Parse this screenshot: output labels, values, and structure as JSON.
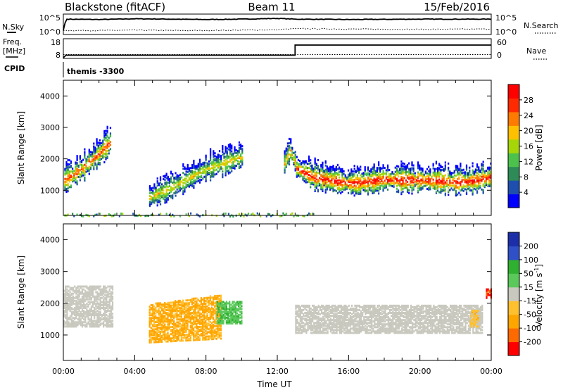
{
  "header": {
    "station": "Blackstone (fitACF)",
    "beam": "Beam 11",
    "date": "15/Feb/2016"
  },
  "noise_panel": {
    "left_label": "N.Sky",
    "right_label": "N.Search",
    "left_ticks": [
      "10^5",
      "10^0"
    ],
    "right_ticks": [
      "10^5",
      "10^0"
    ]
  },
  "freq_panel": {
    "left_label_1": "Freq.",
    "left_label_2": "[MHz]",
    "right_label": "Nave",
    "left_ticks": [
      "18",
      "8"
    ],
    "right_ticks": [
      "60",
      "0"
    ]
  },
  "cpid": {
    "label": "CPID",
    "value": "themis -3300"
  },
  "power_panel": {
    "ylabel": "Slant Range [km]",
    "yticks": [
      "4000",
      "3000",
      "2000",
      "1000"
    ],
    "colorbar_label": "Power [dB]",
    "colorbar_ticks": [
      "28",
      "24",
      "20",
      "16",
      "12",
      "8",
      "4"
    ]
  },
  "velocity_panel": {
    "ylabel": "Slant Range [km]",
    "yticks": [
      "4000",
      "3000",
      "2000",
      "1000"
    ],
    "colorbar_label": "Velocity [m s",
    "colorbar_label_sup": "-1",
    "colorbar_label_end": "]",
    "colorbar_ticks": [
      "200",
      "100",
      "50",
      "15",
      "-15",
      "-50",
      "-100",
      "-200"
    ]
  },
  "xaxis": {
    "label": "Time UT",
    "ticks": [
      "00:00",
      "04:00",
      "08:00",
      "12:00",
      "16:00",
      "20:00",
      "00:00"
    ]
  },
  "colors": {
    "power_scale": [
      "#0000ff",
      "#1e4fae",
      "#2e8b57",
      "#4cc24c",
      "#a6d608",
      "#ffc000",
      "#ff7a00",
      "#ff2a00",
      "#ff0000"
    ],
    "velocity_scale": [
      "#ff0000",
      "#ff6a00",
      "#ffa500",
      "#ffc030",
      "#c8c8be",
      "#5ac85a",
      "#30b030",
      "#3050c8",
      "#1c2fa8"
    ]
  },
  "chart_data": [
    {
      "type": "line",
      "title": "N.Sky / N.Search",
      "x_unit": "hours UT",
      "xlim": [
        0,
        24
      ],
      "series": [
        {
          "name": "N.Sky",
          "style": "solid",
          "x": [
            0,
            0.15,
            2,
            4,
            6,
            8,
            10,
            12,
            13,
            16,
            20,
            24
          ],
          "y": [
            1,
            4.0,
            3.9,
            4.1,
            4.0,
            3.9,
            4.0,
            4.2,
            4.0,
            3.9,
            4.0,
            4.0
          ]
        },
        {
          "name": "N.Search",
          "style": "dotted",
          "x": [
            0,
            2,
            4,
            6,
            8,
            10,
            12,
            13,
            16,
            20,
            24
          ],
          "y": [
            0.9,
            0.9,
            1.0,
            0.9,
            0.9,
            1.0,
            1.1,
            1.4,
            1.3,
            1.2,
            1.3
          ]
        }
      ]
    },
    {
      "type": "line",
      "title": "Freq. [MHz] / Nave",
      "x_unit": "hours UT",
      "xlim": [
        0,
        24
      ],
      "series": [
        {
          "name": "Freq. [MHz]",
          "style": "solid",
          "x": [
            0,
            0.15,
            13.0,
            13.0,
            24
          ],
          "y": [
            8,
            10,
            10,
            18,
            18
          ]
        },
        {
          "name": "Nave",
          "style": "dotted",
          "x": [
            0,
            24
          ],
          "y": [
            15,
            15
          ]
        }
      ]
    },
    {
      "type": "heatmap",
      "title": "Power [dB]",
      "xlabel": "Time UT",
      "ylabel": "Slant Range [km]",
      "xlim": [
        0,
        24
      ],
      "ylim": [
        200,
        4500
      ],
      "colorbar_range": [
        0,
        30
      ],
      "features": [
        {
          "description": "scatter band",
          "t": [
            0.0,
            0.5,
            1.0,
            1.5,
            2.0,
            2.6
          ],
          "range": [
            1350,
            1500,
            1700,
            1950,
            2200,
            2550
          ],
          "peak_db": 24
        },
        {
          "description": "scatter band",
          "t": [
            4.8,
            6.0,
            7.0,
            8.0,
            9.0,
            10.0
          ],
          "range": [
            800,
            1100,
            1400,
            1700,
            1900,
            2100
          ],
          "peak_db": 18
        },
        {
          "description": "scatter band",
          "t": [
            12.3,
            12.7,
            13.0
          ],
          "range": [
            1800,
            2300,
            1900
          ],
          "peak_db": 20
        },
        {
          "description": "scatter band",
          "t": [
            13.0,
            14.0,
            15.0,
            16.0,
            17.0,
            18.0,
            19.0,
            20.0,
            21.0,
            22.0,
            23.0,
            24.0
          ],
          "range": [
            1750,
            1450,
            1350,
            1250,
            1300,
            1380,
            1350,
            1360,
            1330,
            1300,
            1320,
            1450
          ],
          "peak_db": 28
        },
        {
          "description": "near-range scatter",
          "t_range": [
            0,
            14
          ],
          "range_km": [
            200,
            300
          ],
          "peak_db": 12
        }
      ]
    },
    {
      "type": "heatmap",
      "title": "Velocity [m s-1]",
      "xlabel": "Time UT",
      "ylabel": "Slant Range [km]",
      "xlim": [
        0,
        24
      ],
      "ylim": [
        200,
        4500
      ],
      "colorbar_range": [
        -200,
        200
      ],
      "features": [
        {
          "description": "ground scatter (|v|<15)",
          "t_range": [
            0,
            2.8
          ],
          "range_km": [
            1300,
            2600
          ],
          "velocity": 0
        },
        {
          "description": "ionospheric scatter",
          "t_range": [
            4.8,
            8.8
          ],
          "range_km": [
            800,
            2000
          ],
          "velocity": -60
        },
        {
          "description": "ionospheric scatter",
          "t_range": [
            8.6,
            10.0
          ],
          "range_km": [
            1400,
            2100
          ],
          "velocity": 40
        },
        {
          "description": "ground scatter (|v|<15)",
          "t_range": [
            13.0,
            23.5
          ],
          "range_km": [
            1100,
            2000
          ],
          "velocity": 0
        },
        {
          "description": "ionospheric scatter",
          "t_range": [
            22.8,
            23.3
          ],
          "range_km": [
            1300,
            1800
          ],
          "velocity": -30
        },
        {
          "description": "ionospheric scatter",
          "t_range": [
            23.7,
            24.0
          ],
          "range_km": [
            2200,
            2500
          ],
          "velocity": -200
        }
      ]
    }
  ]
}
